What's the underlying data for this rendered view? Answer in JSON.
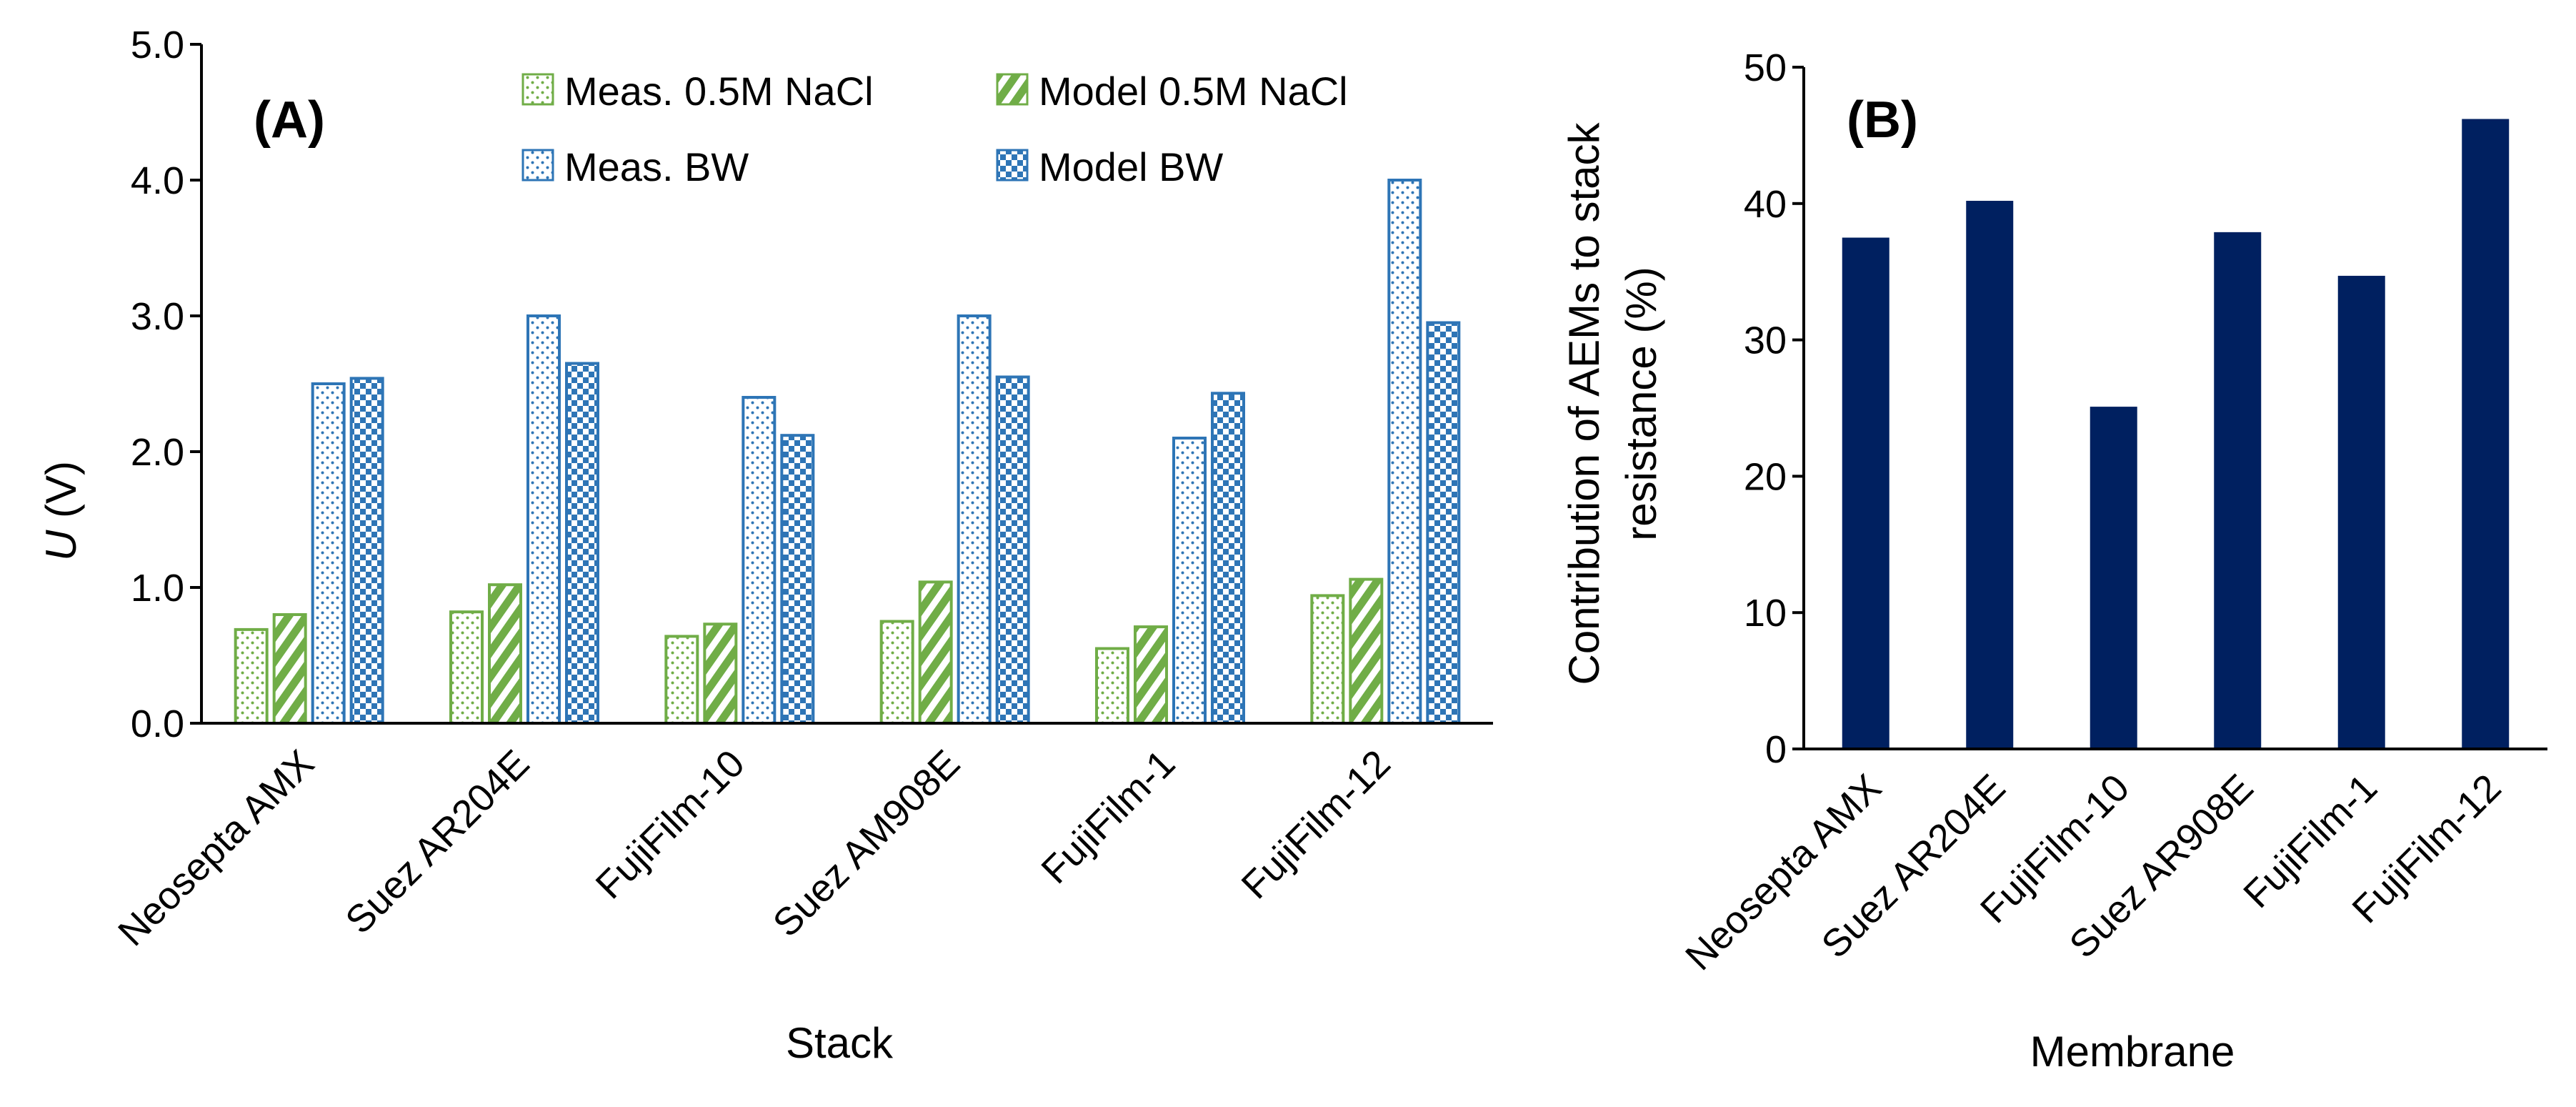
{
  "chart_data": [
    {
      "panel": "(A)",
      "type": "bar",
      "title": "",
      "xlabel": "Stack",
      "ylabel_italic": "U",
      "ylabel_unit": " (V)",
      "ylim": [
        0,
        5
      ],
      "ytick_step": 1,
      "yticks": [
        "0.0",
        "1.0",
        "2.0",
        "3.0",
        "4.0",
        "5.0"
      ],
      "grid": false,
      "legend_position": "top",
      "categories": [
        "Neosepta AMX",
        "Suez AR204E",
        "FujiFilm-10",
        "Suez AM908E",
        "FujiFilm-1",
        "FujiFilm-12"
      ],
      "series": [
        {
          "name": "Meas. 0.5M NaCl",
          "color": "#70ad47",
          "pattern": "dots",
          "values": [
            0.69,
            0.82,
            0.64,
            0.75,
            0.55,
            0.94
          ]
        },
        {
          "name": "Model 0.5M NaCl",
          "color": "#70ad47",
          "pattern": "diagonal",
          "values": [
            0.8,
            1.02,
            0.73,
            1.04,
            0.71,
            1.06
          ]
        },
        {
          "name": "Meas. BW",
          "color": "#2e75b6",
          "pattern": "dots",
          "values": [
            2.5,
            3.0,
            2.4,
            3.0,
            2.1,
            4.0
          ]
        },
        {
          "name": "Model BW",
          "color": "#2e75b6",
          "pattern": "checker",
          "values": [
            2.54,
            2.65,
            2.12,
            2.55,
            2.43,
            2.95
          ]
        }
      ]
    },
    {
      "panel": "(B)",
      "type": "bar",
      "title": "",
      "xlabel": "Membrane",
      "ylabel_lines": [
        "Contribution of AEMs to stack",
        "resistance (%)"
      ],
      "ylim": [
        0,
        50
      ],
      "ytick_step": 10,
      "yticks": [
        "0",
        "10",
        "20",
        "30",
        "40",
        "50"
      ],
      "grid": false,
      "categories": [
        "Neosepta AMX",
        "Suez AR204E",
        "FujiFilm-10",
        "Suez AR908E",
        "FujiFilm-1",
        "FujiFilm-12"
      ],
      "series": [
        {
          "name": "Contribution of AEMs",
          "color": "#002060",
          "values": [
            37.5,
            40.2,
            25.1,
            37.9,
            34.7,
            46.2
          ]
        }
      ]
    }
  ]
}
